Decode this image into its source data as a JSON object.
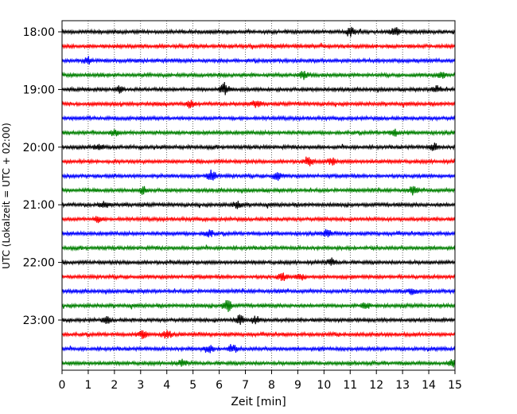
{
  "chart_data": {
    "type": "line",
    "xlabel": "Zeit  [min]",
    "ylabel": "UTC (Lokalzeit = UTC + 02:00)",
    "xlim": [
      0,
      15
    ],
    "xticks": [
      "0",
      "1",
      "2",
      "3",
      "4",
      "5",
      "6",
      "7",
      "8",
      "9",
      "10",
      "11",
      "12",
      "13",
      "14",
      "15"
    ],
    "yticks": [
      {
        "label": "18:00",
        "row": 0
      },
      {
        "label": "19:00",
        "row": 4
      },
      {
        "label": "20:00",
        "row": 8
      },
      {
        "label": "21:00",
        "row": 12
      },
      {
        "label": "22:00",
        "row": 16
      },
      {
        "label": "23:00",
        "row": 20
      }
    ],
    "row_count": 24,
    "row_minutes": 15,
    "start_time": "18:00",
    "grid": "vertical-dotted",
    "trace_colors": [
      "#000000",
      "#ff0000",
      "#0000ff",
      "#008000"
    ],
    "events": [
      {
        "row": 0,
        "t": 11.0,
        "a": 1.0
      },
      {
        "row": 0,
        "t": 12.7,
        "a": 0.9
      },
      {
        "row": 2,
        "t": 1.0,
        "a": 0.7
      },
      {
        "row": 3,
        "t": 9.2,
        "a": 0.8
      },
      {
        "row": 3,
        "t": 14.5,
        "a": 0.6
      },
      {
        "row": 4,
        "t": 2.2,
        "a": 0.8
      },
      {
        "row": 4,
        "t": 6.2,
        "a": 1.2
      },
      {
        "row": 4,
        "t": 14.3,
        "a": 0.8
      },
      {
        "row": 5,
        "t": 4.9,
        "a": 0.7
      },
      {
        "row": 5,
        "t": 7.4,
        "a": 0.7
      },
      {
        "row": 7,
        "t": 2.0,
        "a": 0.6
      },
      {
        "row": 7,
        "t": 12.7,
        "a": 0.6
      },
      {
        "row": 8,
        "t": 1.4,
        "a": 0.6
      },
      {
        "row": 8,
        "t": 14.2,
        "a": 0.7
      },
      {
        "row": 9,
        "t": 9.4,
        "a": 0.9
      },
      {
        "row": 9,
        "t": 10.3,
        "a": 0.7
      },
      {
        "row": 10,
        "t": 5.7,
        "a": 1.2
      },
      {
        "row": 10,
        "t": 8.2,
        "a": 0.8
      },
      {
        "row": 11,
        "t": 3.1,
        "a": 0.7
      },
      {
        "row": 11,
        "t": 13.4,
        "a": 0.7
      },
      {
        "row": 12,
        "t": 1.6,
        "a": 0.6
      },
      {
        "row": 12,
        "t": 6.7,
        "a": 0.7
      },
      {
        "row": 13,
        "t": 1.4,
        "a": 0.7
      },
      {
        "row": 14,
        "t": 5.6,
        "a": 0.8
      },
      {
        "row": 14,
        "t": 10.1,
        "a": 0.8
      },
      {
        "row": 16,
        "t": 10.3,
        "a": 0.7
      },
      {
        "row": 17,
        "t": 8.4,
        "a": 0.8
      },
      {
        "row": 17,
        "t": 9.1,
        "a": 0.7
      },
      {
        "row": 18,
        "t": 13.4,
        "a": 0.6
      },
      {
        "row": 19,
        "t": 6.3,
        "a": 1.4
      },
      {
        "row": 19,
        "t": 11.6,
        "a": 0.7
      },
      {
        "row": 20,
        "t": 1.7,
        "a": 0.6
      },
      {
        "row": 20,
        "t": 6.8,
        "a": 1.0
      },
      {
        "row": 20,
        "t": 7.4,
        "a": 0.8
      },
      {
        "row": 21,
        "t": 3.1,
        "a": 0.9
      },
      {
        "row": 21,
        "t": 4.0,
        "a": 0.9
      },
      {
        "row": 22,
        "t": 5.6,
        "a": 0.8
      },
      {
        "row": 22,
        "t": 6.5,
        "a": 0.9
      },
      {
        "row": 23,
        "t": 4.6,
        "a": 0.6
      },
      {
        "row": 23,
        "t": 14.9,
        "a": 0.6
      }
    ]
  }
}
